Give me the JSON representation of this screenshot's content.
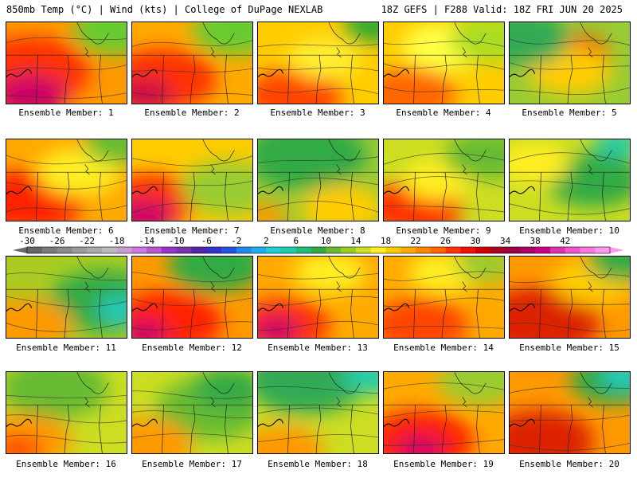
{
  "header": {
    "left": "850mb Temp (°C) | Wind (kts) | College of DuPage NEXLAB",
    "right": "18Z GEFS | F288 Valid: 18Z FRI JUN 20 2025"
  },
  "label_prefix": "Ensemble Member:",
  "members": [
    {
      "number": "1",
      "base": "#ff9900",
      "blobs": [
        [
          "#ff3300",
          0.2,
          0.6,
          0.5
        ],
        [
          "#cc0066",
          0.2,
          0.9,
          0.3
        ],
        [
          "#66cc33",
          0.9,
          0.1,
          0.35
        ]
      ]
    },
    {
      "number": "2",
      "base": "#ffaa00",
      "blobs": [
        [
          "#ff3300",
          0.25,
          0.7,
          0.45
        ],
        [
          "#cc1144",
          0.1,
          0.9,
          0.25
        ],
        [
          "#66cc33",
          0.85,
          0.1,
          0.35
        ]
      ]
    },
    {
      "number": "3",
      "base": "#ffcc00",
      "blobs": [
        [
          "#ff4400",
          0.3,
          0.9,
          0.4
        ],
        [
          "#ffee33",
          0.55,
          0.45,
          0.3
        ],
        [
          "#33aa33",
          0.95,
          0.05,
          0.25
        ]
      ]
    },
    {
      "number": "4",
      "base": "#ffcc00",
      "blobs": [
        [
          "#ff6600",
          0.2,
          0.9,
          0.4
        ],
        [
          "#ffff44",
          0.5,
          0.3,
          0.35
        ],
        [
          "#aadd22",
          0.9,
          0.2,
          0.35
        ]
      ]
    },
    {
      "number": "5",
      "base": "#99cc33",
      "blobs": [
        [
          "#ff3300",
          0.55,
          0.4,
          0.28
        ],
        [
          "#ffcc00",
          0.5,
          0.6,
          0.35
        ],
        [
          "#33aa55",
          0.1,
          0.2,
          0.4
        ]
      ]
    },
    {
      "number": "6",
      "base": "#ffaa00",
      "blobs": [
        [
          "#ff2200",
          0.2,
          0.75,
          0.45
        ],
        [
          "#ffee22",
          0.6,
          0.4,
          0.35
        ],
        [
          "#66bb33",
          0.95,
          0.05,
          0.3
        ]
      ]
    },
    {
      "number": "7",
      "base": "#ffcc00",
      "blobs": [
        [
          "#ff3300",
          0.15,
          0.75,
          0.4
        ],
        [
          "#cc0066",
          0.1,
          0.95,
          0.25
        ],
        [
          "#99cc33",
          0.8,
          0.6,
          0.4
        ]
      ]
    },
    {
      "number": "8",
      "base": "#99cc33",
      "blobs": [
        [
          "#33aa44",
          0.4,
          0.2,
          0.5
        ],
        [
          "#ffcc00",
          0.7,
          0.85,
          0.35
        ],
        [
          "#ff9900",
          0.05,
          0.95,
          0.2
        ]
      ]
    },
    {
      "number": "9",
      "base": "#ccdd22",
      "blobs": [
        [
          "#ff3300",
          0.25,
          0.85,
          0.4
        ],
        [
          "#ffee22",
          0.45,
          0.5,
          0.3
        ],
        [
          "#66bb33",
          0.85,
          0.2,
          0.35
        ]
      ]
    },
    {
      "number": "10",
      "base": "#ccdd22",
      "blobs": [
        [
          "#33aa44",
          0.7,
          0.5,
          0.4
        ],
        [
          "#ffee22",
          0.2,
          0.3,
          0.3
        ],
        [
          "#22ccaa",
          0.9,
          0.05,
          0.2
        ]
      ]
    },
    {
      "number": "11",
      "base": "#aacc22",
      "blobs": [
        [
          "#33aa44",
          0.8,
          0.55,
          0.45
        ],
        [
          "#22ccbb",
          0.95,
          0.65,
          0.2
        ],
        [
          "#ff9900",
          0.15,
          0.85,
          0.4
        ]
      ]
    },
    {
      "number": "12",
      "base": "#ff9900",
      "blobs": [
        [
          "#ff2200",
          0.3,
          0.8,
          0.45
        ],
        [
          "#cc0066",
          0.1,
          0.95,
          0.2
        ],
        [
          "#33aa44",
          0.7,
          0.1,
          0.4
        ]
      ]
    },
    {
      "number": "13",
      "base": "#ffaa00",
      "blobs": [
        [
          "#ff3300",
          0.2,
          0.85,
          0.4
        ],
        [
          "#cc0066",
          0.15,
          0.9,
          0.2
        ],
        [
          "#ffee22",
          0.6,
          0.2,
          0.3
        ]
      ]
    },
    {
      "number": "14",
      "base": "#ffaa00",
      "blobs": [
        [
          "#ff4400",
          0.3,
          0.85,
          0.4
        ],
        [
          "#ffee22",
          0.5,
          0.2,
          0.3
        ],
        [
          "#99cc33",
          0.85,
          0.1,
          0.25
        ]
      ]
    },
    {
      "number": "15",
      "base": "#ff9900",
      "blobs": [
        [
          "#dd2200",
          0.25,
          0.8,
          0.5
        ],
        [
          "#ffcc00",
          0.7,
          0.3,
          0.35
        ],
        [
          "#33aa44",
          0.95,
          0.05,
          0.3
        ]
      ]
    },
    {
      "number": "16",
      "base": "#ccdd22",
      "blobs": [
        [
          "#66bb33",
          0.4,
          0.2,
          0.45
        ],
        [
          "#ff9900",
          0.15,
          0.85,
          0.4
        ],
        [
          "#ff4400",
          0.1,
          0.95,
          0.2
        ]
      ]
    },
    {
      "number": "17",
      "base": "#ccdd22",
      "blobs": [
        [
          "#66bb33",
          0.65,
          0.45,
          0.45
        ],
        [
          "#ff9900",
          0.1,
          0.9,
          0.4
        ],
        [
          "#33aa44",
          0.8,
          0.2,
          0.3
        ]
      ]
    },
    {
      "number": "18",
      "base": "#ccdd22",
      "blobs": [
        [
          "#33aa55",
          0.4,
          0.1,
          0.5
        ],
        [
          "#ff9900",
          0.2,
          0.95,
          0.35
        ],
        [
          "#22ccaa",
          0.95,
          0.05,
          0.25
        ]
      ]
    },
    {
      "number": "19",
      "base": "#ffaa00",
      "blobs": [
        [
          "#ff2200",
          0.3,
          0.85,
          0.45
        ],
        [
          "#cc0066",
          0.3,
          0.95,
          0.2
        ],
        [
          "#99cc33",
          0.8,
          0.1,
          0.35
        ]
      ]
    },
    {
      "number": "20",
      "base": "#ff9900",
      "blobs": [
        [
          "#dd2200",
          0.25,
          0.85,
          0.45
        ],
        [
          "#33aa44",
          0.85,
          0.1,
          0.35
        ],
        [
          "#22ccbb",
          0.95,
          0.05,
          0.2
        ]
      ]
    }
  ],
  "colorbar": {
    "tick_labels": [
      "-30",
      "-26",
      "-22",
      "-18",
      "-14",
      "-10",
      "-6",
      "-2",
      "2",
      "6",
      "10",
      "14",
      "18",
      "22",
      "26",
      "30",
      "34",
      "38",
      "42"
    ],
    "colors": [
      "#666666",
      "#7a7a7a",
      "#8a8a8a",
      "#9a9a9a",
      "#aaaaaa",
      "#bbbbbb",
      "#c8a0d0",
      "#cc77dd",
      "#bb55cc",
      "#9933cc",
      "#7733aa",
      "#5522aa",
      "#3333cc",
      "#2255dd",
      "#2288ee",
      "#22aaee",
      "#22cccc",
      "#22ccaa",
      "#22bb77",
      "#33aa44",
      "#66bb33",
      "#99cc22",
      "#ccdd22",
      "#ffee22",
      "#ffcc00",
      "#ffaa00",
      "#ff8800",
      "#ff6600",
      "#ff3300",
      "#ee1100",
      "#cc0000",
      "#aa0022",
      "#990044",
      "#aa0066",
      "#cc0088",
      "#dd33aa",
      "#ee55cc",
      "#ff77dd",
      "#ff99ee"
    ]
  }
}
